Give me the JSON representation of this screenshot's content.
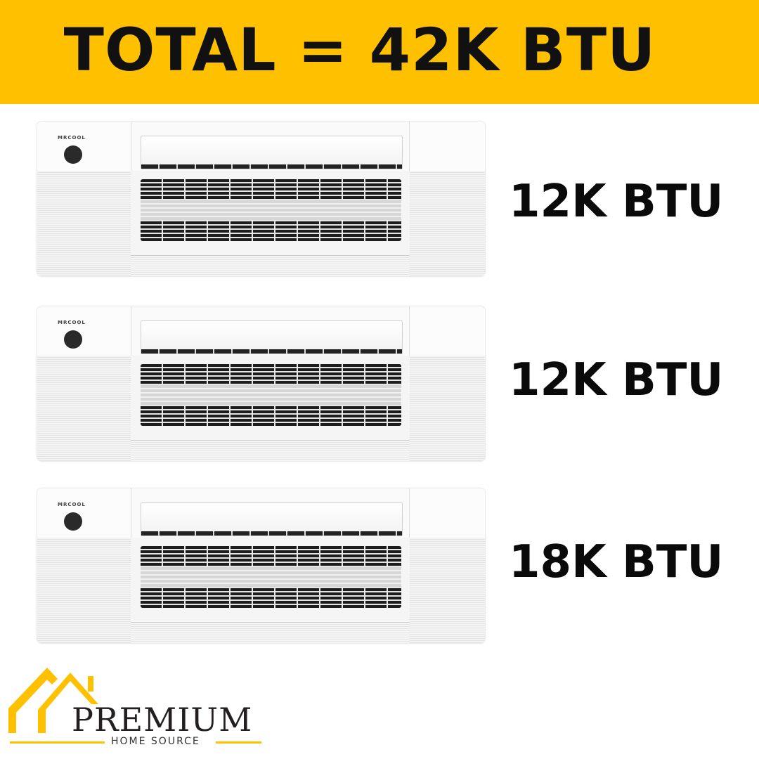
{
  "banner": {
    "title": "TOTAL = 42K BTU",
    "color": "#FFC000"
  },
  "units": [
    {
      "brand": "MRCOOL",
      "capacity": "12K BTU"
    },
    {
      "brand": "MRCOOL",
      "capacity": "12K BTU"
    },
    {
      "brand": "MRCOOL",
      "capacity": "18K BTU"
    }
  ],
  "logo": {
    "name": "PREMIUM",
    "tagline": "HOME SOURCE",
    "accent": "#FFC000",
    "icon": "house-roof-icon"
  }
}
